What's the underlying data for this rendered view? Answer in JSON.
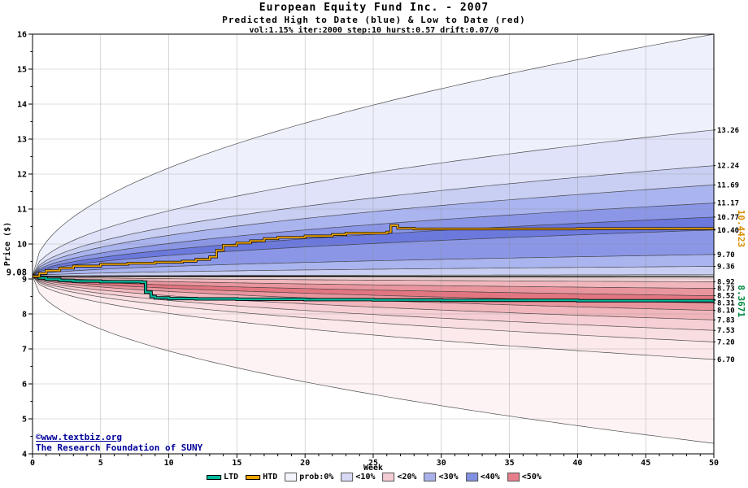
{
  "header": {
    "title": "European Equity Fund Inc. - 2007",
    "subtitle": "Predicted High to Date (blue) &  Low to Date (red)",
    "params": "vol:1.15% iter:2000 step:10 hurst:0.57 drift:0.07/0"
  },
  "footer": {
    "copyright_line1": "©www.textbiz.org",
    "copyright_line2": "The Research Foundation of SUNY"
  },
  "chart_data": {
    "type": "area",
    "title": "European Equity Fund Inc. - 2007",
    "xlabel": "Week",
    "ylabel": "Price ($)",
    "x_range": [
      0,
      50
    ],
    "y_range": [
      4,
      16
    ],
    "x_ticks": [
      0,
      5,
      10,
      15,
      20,
      25,
      30,
      35,
      40,
      45,
      50
    ],
    "y_ticks": [
      4,
      5,
      6,
      7,
      8,
      9,
      10,
      11,
      12,
      13,
      14,
      15,
      16
    ],
    "grid": true,
    "start": {
      "week": 0,
      "price": 9.08,
      "label": "9.08"
    },
    "blue_bands": [
      {
        "upper": 16.0,
        "lower": 13.26,
        "color": "#eef0fb"
      },
      {
        "upper": 13.26,
        "lower": 12.24,
        "color": "#dfe2f8"
      },
      {
        "upper": 12.24,
        "lower": 11.69,
        "color": "#c9cff3"
      },
      {
        "upper": 11.69,
        "lower": 11.17,
        "color": "#aab4ee"
      },
      {
        "upper": 11.17,
        "lower": 10.77,
        "color": "#8b97e6"
      },
      {
        "upper": 10.77,
        "lower": 10.4,
        "color": "#6b79dd"
      },
      {
        "upper": 10.4,
        "lower": 9.7,
        "color": "#8b97e6"
      },
      {
        "upper": 9.7,
        "lower": 9.36,
        "color": "#aab4ee"
      },
      {
        "upper": 9.36,
        "lower": 9.12,
        "color": "#c9cff3"
      }
    ],
    "red_bands": [
      {
        "upper": 9.04,
        "lower": 8.92,
        "color": "#f6d7da"
      },
      {
        "upper": 8.92,
        "lower": 8.73,
        "color": "#f0b6bc"
      },
      {
        "upper": 8.73,
        "lower": 8.52,
        "color": "#e9959e"
      },
      {
        "upper": 8.52,
        "lower": 8.31,
        "color": "#e27680"
      },
      {
        "upper": 8.31,
        "lower": 8.1,
        "color": "#e9959e"
      },
      {
        "upper": 8.1,
        "lower": 7.83,
        "color": "#f0b6bc"
      },
      {
        "upper": 7.83,
        "lower": 7.53,
        "color": "#f6cfd4"
      },
      {
        "upper": 7.53,
        "lower": 7.2,
        "color": "#f9dee1"
      },
      {
        "upper": 7.2,
        "lower": 6.7,
        "color": "#fbe9eb"
      },
      {
        "upper": 6.7,
        "lower": 4.3,
        "color": "#fdf3f4"
      }
    ],
    "right_labels": [
      {
        "v": 13.26,
        "t": "13.26"
      },
      {
        "v": 12.24,
        "t": "12.24"
      },
      {
        "v": 11.69,
        "t": "11.69"
      },
      {
        "v": 11.17,
        "t": "11.17"
      },
      {
        "v": 10.77,
        "t": "10.77"
      },
      {
        "v": 10.4,
        "t": "10.40"
      },
      {
        "v": 9.7,
        "t": "9.70"
      },
      {
        "v": 9.36,
        "t": "9.36"
      },
      {
        "v": 8.92,
        "t": "8.92"
      },
      {
        "v": 8.73,
        "t": "8.73"
      },
      {
        "v": 8.52,
        "t": "8.52"
      },
      {
        "v": 8.31,
        "t": "8.31"
      },
      {
        "v": 8.1,
        "t": "8.10"
      },
      {
        "v": 7.83,
        "t": "7.83"
      },
      {
        "v": 7.53,
        "t": "7.53"
      },
      {
        "v": 7.2,
        "t": "7.20"
      },
      {
        "v": 6.7,
        "t": "6.70"
      }
    ],
    "htd": {
      "name": "HTD",
      "color": "#f0a500",
      "end_label": "10.4423",
      "end_value": 10.4423,
      "end_label_color": "#d98e00",
      "points": [
        [
          0,
          9.08
        ],
        [
          0.5,
          9.16
        ],
        [
          1,
          9.24
        ],
        [
          2,
          9.31
        ],
        [
          3,
          9.37
        ],
        [
          5,
          9.42
        ],
        [
          7,
          9.45
        ],
        [
          9,
          9.48
        ],
        [
          11,
          9.51
        ],
        [
          12,
          9.56
        ],
        [
          13,
          9.63
        ],
        [
          13.5,
          9.82
        ],
        [
          14,
          9.96
        ],
        [
          15,
          10.03
        ],
        [
          16,
          10.09
        ],
        [
          17,
          10.15
        ],
        [
          18,
          10.19
        ],
        [
          20,
          10.23
        ],
        [
          22,
          10.27
        ],
        [
          23,
          10.31
        ],
        [
          26,
          10.34
        ],
        [
          26.3,
          10.53
        ],
        [
          26.8,
          10.45
        ],
        [
          28,
          10.43
        ],
        [
          32,
          10.43
        ],
        [
          40,
          10.44
        ],
        [
          50,
          10.4423
        ]
      ]
    },
    "ltd": {
      "name": "LTD",
      "color": "#00b89c",
      "end_label": "8.3671",
      "end_value": 8.3671,
      "end_label_color": "#008840",
      "points": [
        [
          0,
          9.08
        ],
        [
          0.5,
          9.03
        ],
        [
          1,
          8.99
        ],
        [
          2,
          8.96
        ],
        [
          3,
          8.94
        ],
        [
          5,
          8.92
        ],
        [
          8,
          8.91
        ],
        [
          8.3,
          8.62
        ],
        [
          8.7,
          8.5
        ],
        [
          9,
          8.46
        ],
        [
          10,
          8.44
        ],
        [
          12,
          8.43
        ],
        [
          15,
          8.42
        ],
        [
          20,
          8.41
        ],
        [
          25,
          8.4
        ],
        [
          30,
          8.39
        ],
        [
          40,
          8.38
        ],
        [
          50,
          8.3671
        ]
      ]
    },
    "legend": [
      {
        "label": "LTD",
        "swatch": "line",
        "color": "#00b89c"
      },
      {
        "label": "HTD",
        "swatch": "line",
        "color": "#f0a500"
      },
      {
        "label": "prob:0%",
        "swatch": "box",
        "color": "#f4f4fc"
      },
      {
        "label": "<10%",
        "swatch": "box",
        "color": "#d8daf5"
      },
      {
        "label": "<20%",
        "swatch": "box",
        "color": "#f4cdd4"
      },
      {
        "label": "<30%",
        "swatch": "box",
        "color": "#a9b2ea"
      },
      {
        "label": "<40%",
        "swatch": "box",
        "color": "#8290e2"
      },
      {
        "label": "<50%",
        "swatch": "box",
        "color": "#e57f8b"
      }
    ]
  }
}
